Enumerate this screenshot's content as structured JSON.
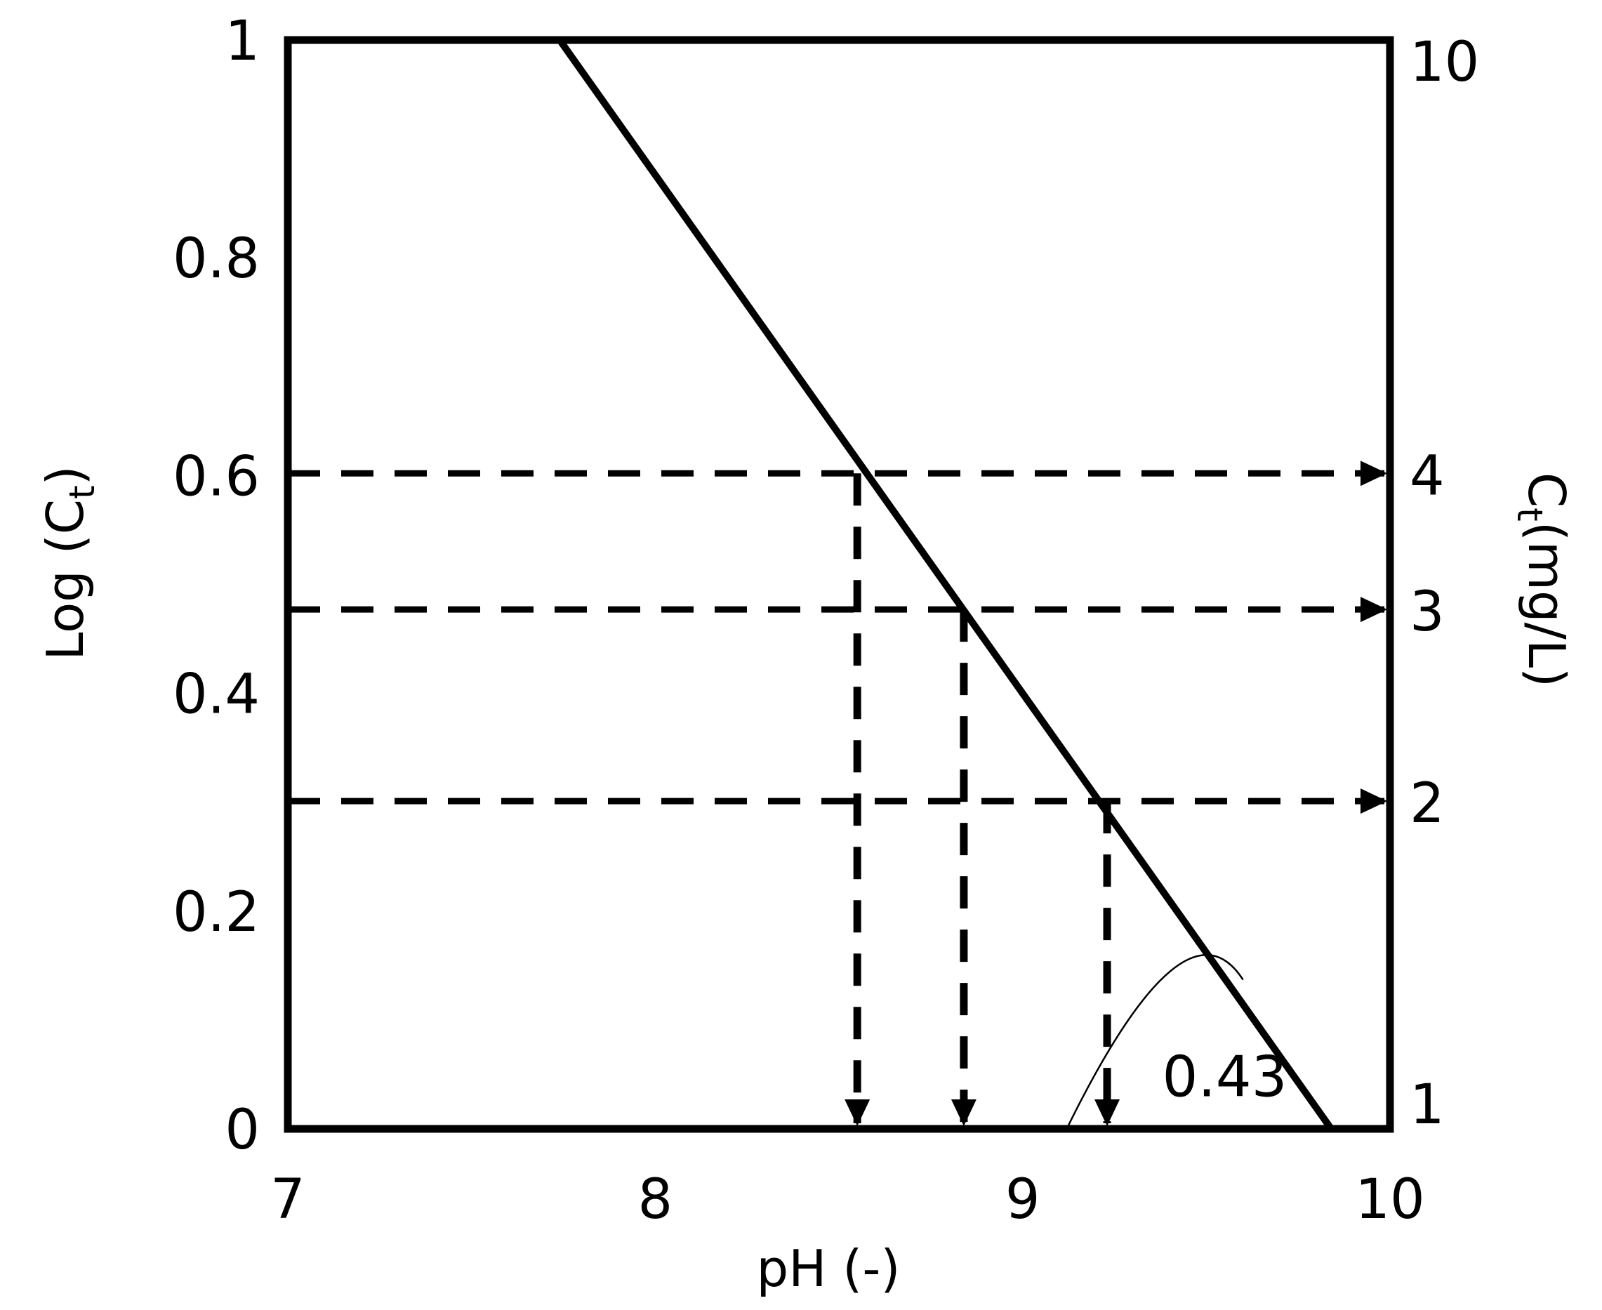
{
  "chart_data": {
    "type": "line",
    "xlabel": "pH (-)",
    "ylabel": {
      "main": "Log (C",
      "sub": "t",
      "end": ")"
    },
    "y2label": {
      "main": "C",
      "sub": "t",
      "end": "(mg/L)"
    },
    "xlim": [
      7,
      10
    ],
    "ylim": [
      0,
      1
    ],
    "x_ticks": [
      7,
      8,
      9,
      10
    ],
    "x_tick_labels": [
      "7",
      "8",
      "9",
      "10"
    ],
    "y_ticks": [
      0,
      0.2,
      0.4,
      0.6,
      0.8,
      1
    ],
    "y_tick_labels": [
      "0",
      "0.2",
      "0.4",
      "0.6",
      "0.8",
      "1"
    ],
    "y2_ticks": [
      {
        "label": "10",
        "log_value": 1.0
      },
      {
        "label": "4",
        "log_value": 0.602
      },
      {
        "label": "3",
        "log_value": 0.477
      },
      {
        "label": "2",
        "log_value": 0.301
      },
      {
        "label": "1",
        "log_value": 0.0
      }
    ],
    "line": {
      "x": [
        7.74,
        9.84
      ],
      "y": [
        1.0,
        0.0
      ]
    },
    "guides": [
      {
        "ct": 4,
        "log_ct": 0.602,
        "ph": 8.55
      },
      {
        "ct": 3,
        "log_ct": 0.477,
        "ph": 8.84
      },
      {
        "ct": 2,
        "log_ct": 0.301,
        "ph": 9.23
      }
    ],
    "slope_annotation": {
      "text": "0.43"
    },
    "grid": false
  }
}
